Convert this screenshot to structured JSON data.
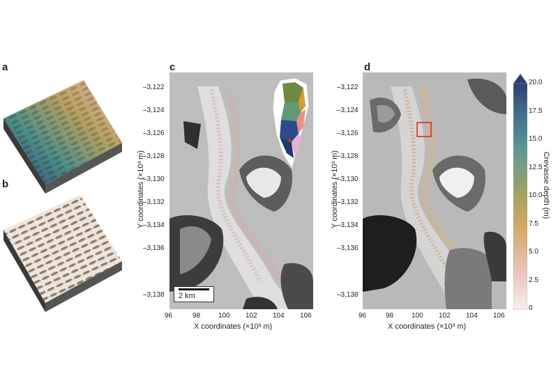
{
  "panels": {
    "a": "a",
    "b": "b",
    "c": "c",
    "d": "d"
  },
  "axes": {
    "y_title": "Y coordinates (×10³ m)",
    "x_title": "X coordinates (×10³ m)",
    "y_ticks": [
      "–3,122",
      "–3,124",
      "–3,126",
      "–3,128",
      "–3,130",
      "–3,132",
      "–3,134",
      "–3,136",
      "–3,138"
    ],
    "x_ticks": [
      "96",
      "98",
      "100",
      "102",
      "104",
      "106"
    ]
  },
  "scalebar": {
    "label": "2 km"
  },
  "colorbar": {
    "title": "Crevasse depth (m)",
    "ticks": [
      "20.0",
      "17.5",
      "15.0",
      "12.5",
      "10.0",
      "7.5",
      "5.0",
      "2.5",
      "0"
    ]
  },
  "colors": {
    "deep": "#2e3e72",
    "mid": "#5d9a95",
    "shallow": "#d8a86a",
    "zero": "#f7efef",
    "highlight_box": "#e0201f"
  }
}
